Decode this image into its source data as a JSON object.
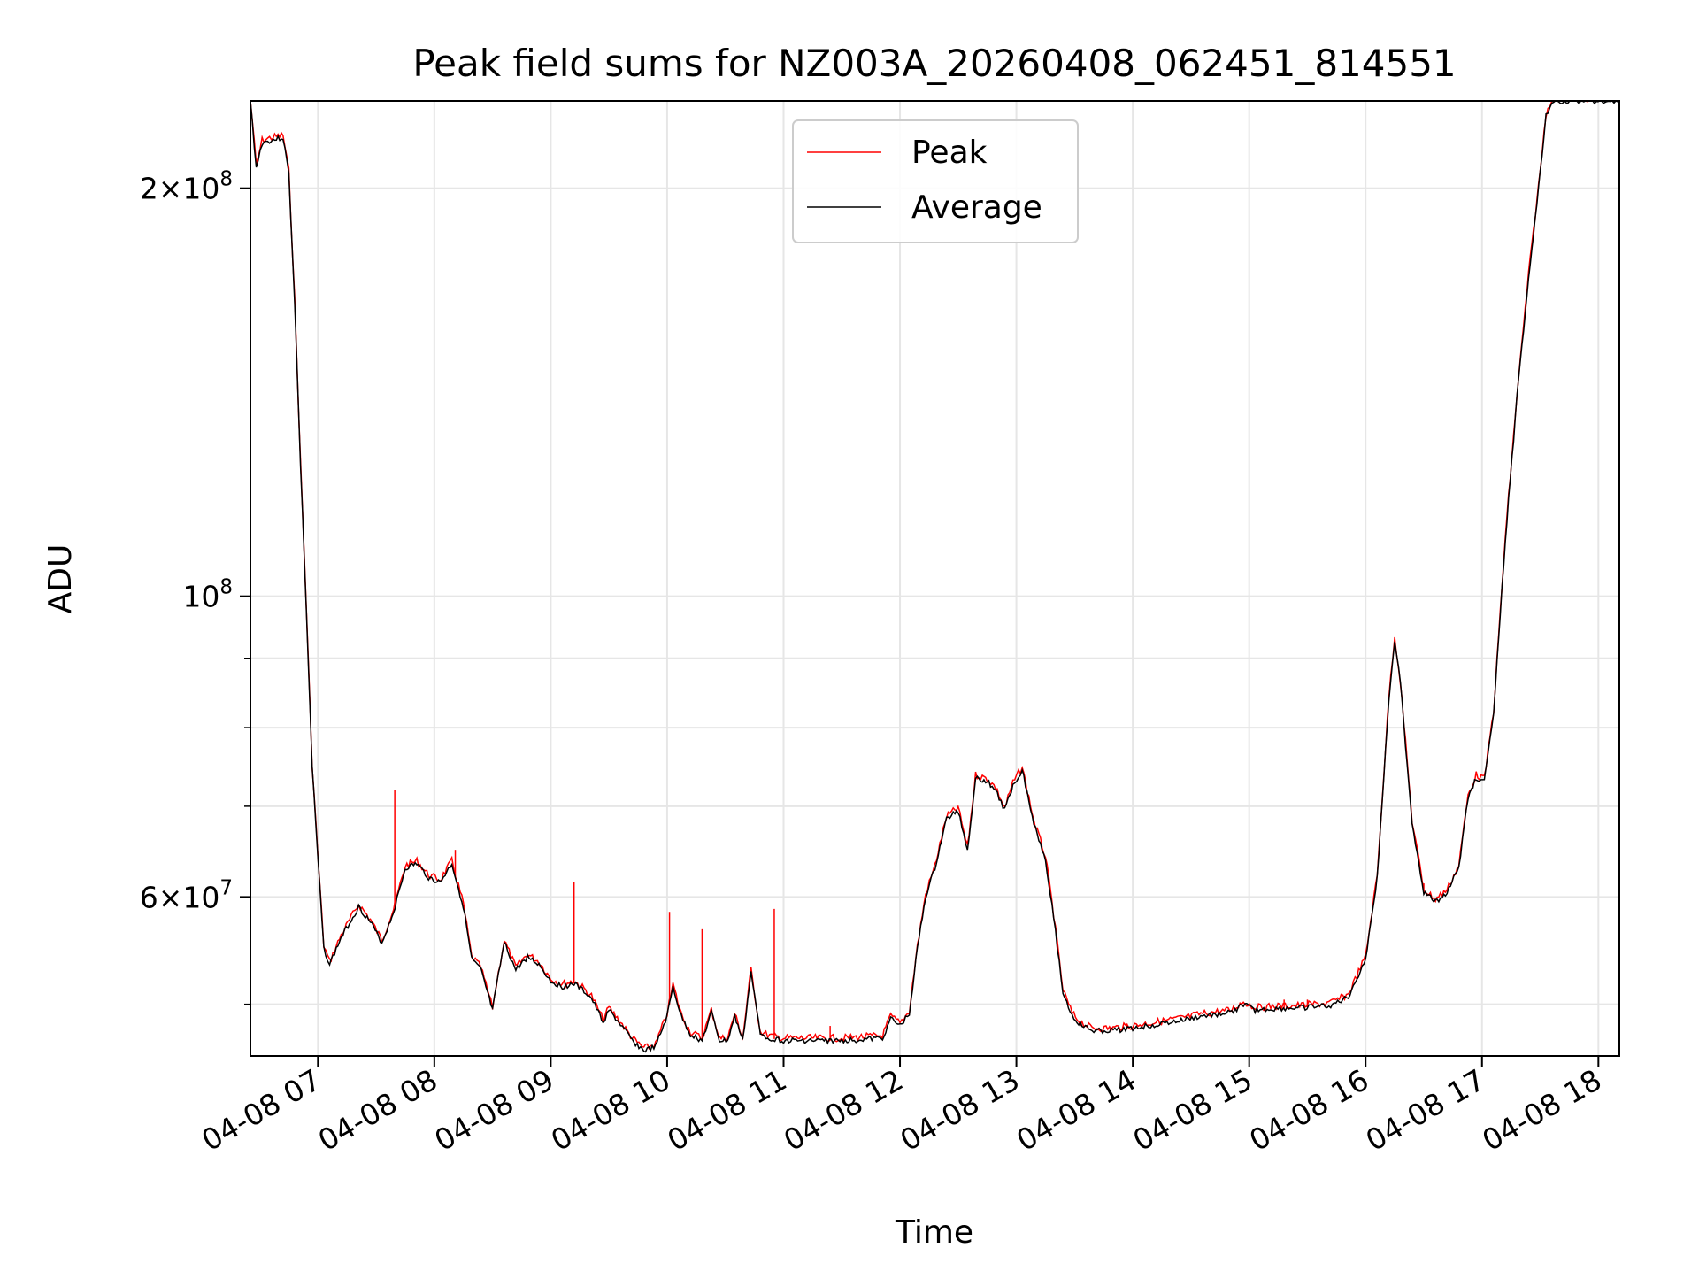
{
  "chart_data": {
    "type": "line",
    "title": "Peak field sums for NZ003A_20260408_062451_814551",
    "xlabel": "Time",
    "ylabel": "ADU",
    "yscale": "log",
    "ylim": [
      45800000,
      232000000
    ],
    "xlim_hours": [
      6.42,
      18.18
    ],
    "x_ticks": [
      {
        "h": 7,
        "label": "04-08 07"
      },
      {
        "h": 8,
        "label": "04-08 08"
      },
      {
        "h": 9,
        "label": "04-08 09"
      },
      {
        "h": 10,
        "label": "04-08 10"
      },
      {
        "h": 11,
        "label": "04-08 11"
      },
      {
        "h": 12,
        "label": "04-08 12"
      },
      {
        "h": 13,
        "label": "04-08 13"
      },
      {
        "h": 14,
        "label": "04-08 14"
      },
      {
        "h": 15,
        "label": "04-08 15"
      },
      {
        "h": 16,
        "label": "04-08 16"
      },
      {
        "h": 17,
        "label": "04-08 17"
      },
      {
        "h": 18,
        "label": "04-08 18"
      }
    ],
    "y_major_ticks": [
      {
        "v": 60000000,
        "mant": "6",
        "exp": "7"
      },
      {
        "v": 100000000,
        "mant": "",
        "exp": "8"
      },
      {
        "v": 200000000,
        "mant": "2",
        "exp": "8"
      }
    ],
    "y_minor_ticks": [
      50000000,
      70000000,
      80000000,
      90000000
    ],
    "grid": true,
    "legend_position": "top-center",
    "series": [
      {
        "name": "Peak",
        "color": "#ff0000"
      },
      {
        "name": "Average",
        "color": "#000000"
      }
    ],
    "average_points": [
      [
        6.42,
        232
      ],
      [
        6.47,
        207
      ],
      [
        6.52,
        216
      ],
      [
        6.6,
        217
      ],
      [
        6.7,
        218
      ],
      [
        6.75,
        205
      ],
      [
        6.8,
        165
      ],
      [
        6.85,
        125
      ],
      [
        6.9,
        98
      ],
      [
        6.95,
        75
      ],
      [
        7.0,
        64
      ],
      [
        7.05,
        55
      ],
      [
        7.1,
        53.5
      ],
      [
        7.2,
        56
      ],
      [
        7.3,
        58
      ],
      [
        7.35,
        59
      ],
      [
        7.45,
        57.5
      ],
      [
        7.55,
        55.5
      ],
      [
        7.65,
        58.5
      ],
      [
        7.75,
        63
      ],
      [
        7.85,
        63.5
      ],
      [
        7.95,
        62
      ],
      [
        8.05,
        61.5
      ],
      [
        8.15,
        63.5
      ],
      [
        8.25,
        59
      ],
      [
        8.32,
        54
      ],
      [
        8.4,
        53
      ],
      [
        8.5,
        49.5
      ],
      [
        8.55,
        52.5
      ],
      [
        8.6,
        55.5
      ],
      [
        8.7,
        53
      ],
      [
        8.8,
        54.2
      ],
      [
        8.9,
        53.5
      ],
      [
        9.0,
        52
      ],
      [
        9.1,
        51.5
      ],
      [
        9.2,
        51.8
      ],
      [
        9.3,
        51
      ],
      [
        9.35,
        50.5
      ],
      [
        9.45,
        48.5
      ],
      [
        9.5,
        49.5
      ],
      [
        9.6,
        48.3
      ],
      [
        9.7,
        47
      ],
      [
        9.8,
        46.2
      ],
      [
        9.9,
        46.5
      ],
      [
        10.0,
        49
      ],
      [
        10.05,
        51.5
      ],
      [
        10.12,
        49
      ],
      [
        10.2,
        47.5
      ],
      [
        10.3,
        47
      ],
      [
        10.38,
        49.3
      ],
      [
        10.45,
        47
      ],
      [
        10.52,
        47
      ],
      [
        10.58,
        49
      ],
      [
        10.65,
        47
      ],
      [
        10.72,
        52.8
      ],
      [
        10.8,
        47.5
      ],
      [
        10.88,
        47.2
      ],
      [
        11.0,
        47.0
      ],
      [
        11.5,
        47.0
      ],
      [
        11.85,
        47.2
      ],
      [
        11.92,
        48.8
      ],
      [
        12.0,
        48.2
      ],
      [
        12.08,
        49.2
      ],
      [
        12.15,
        55
      ],
      [
        12.22,
        60
      ],
      [
        12.3,
        63
      ],
      [
        12.4,
        68.5
      ],
      [
        12.5,
        69.5
      ],
      [
        12.58,
        65
      ],
      [
        12.65,
        73.5
      ],
      [
        12.75,
        73
      ],
      [
        12.82,
        72
      ],
      [
        12.9,
        69.5
      ],
      [
        12.97,
        72.5
      ],
      [
        13.05,
        74.5
      ],
      [
        13.15,
        68
      ],
      [
        13.25,
        64
      ],
      [
        13.32,
        58
      ],
      [
        13.4,
        51
      ],
      [
        13.48,
        49
      ],
      [
        13.55,
        48.3
      ],
      [
        13.65,
        47.8
      ],
      [
        13.8,
        47.8
      ],
      [
        14.0,
        48.0
      ],
      [
        14.2,
        48.3
      ],
      [
        14.4,
        48.6
      ],
      [
        14.6,
        49.0
      ],
      [
        14.85,
        49.3
      ],
      [
        14.95,
        50.0
      ],
      [
        15.05,
        49.5
      ],
      [
        15.2,
        49.6
      ],
      [
        15.45,
        49.7
      ],
      [
        15.7,
        49.9
      ],
      [
        15.85,
        50.6
      ],
      [
        16.0,
        54
      ],
      [
        16.1,
        62
      ],
      [
        16.2,
        84
      ],
      [
        16.25,
        93
      ],
      [
        16.3,
        86
      ],
      [
        16.4,
        68
      ],
      [
        16.5,
        60.5
      ],
      [
        16.6,
        59.5
      ],
      [
        16.7,
        60.5
      ],
      [
        16.8,
        63
      ],
      [
        16.88,
        71
      ],
      [
        16.95,
        73.5
      ],
      [
        17.02,
        73
      ],
      [
        17.1,
        82
      ],
      [
        17.2,
        110
      ],
      [
        17.3,
        140
      ],
      [
        17.4,
        172
      ],
      [
        17.5,
        205
      ],
      [
        17.55,
        226
      ],
      [
        17.6,
        232
      ],
      [
        18.18,
        232
      ]
    ],
    "peak_spikes": [
      [
        7.66,
        72
      ],
      [
        8.18,
        65
      ],
      [
        9.2,
        61.5
      ],
      [
        10.02,
        58.5
      ],
      [
        10.3,
        56.8
      ],
      [
        10.92,
        58.8
      ],
      [
        11.4,
        48.2
      ],
      [
        13.95,
        48.4
      ],
      [
        15.3,
        50.4
      ],
      [
        15.5,
        50.4
      ],
      [
        16.5,
        61.4
      ]
    ]
  }
}
